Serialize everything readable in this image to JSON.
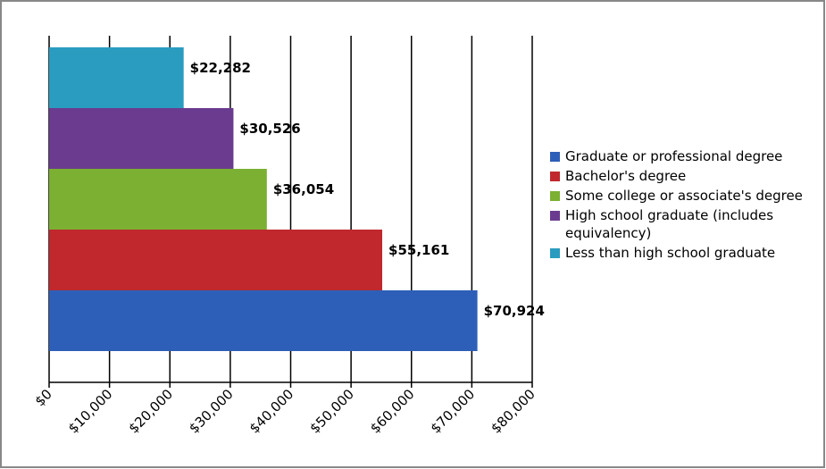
{
  "chart_data": {
    "type": "bar",
    "orientation": "horizontal",
    "series": [
      {
        "name": "Graduate or professional degree",
        "color": "#2e5fb8",
        "values": [
          70924
        ],
        "value_labels": [
          "$70,924"
        ]
      },
      {
        "name": "Bachelor's degree",
        "color": "#c0282d",
        "values": [
          55161
        ],
        "value_labels": [
          "$55,161"
        ]
      },
      {
        "name": "Some college or associate's degree",
        "color": "#7bb032",
        "values": [
          36054
        ],
        "value_labels": [
          "$36,054"
        ]
      },
      {
        "name": "High school graduate (includes equivalency)",
        "color": "#6a3b8f",
        "values": [
          30526
        ],
        "value_labels": [
          "$30,526"
        ]
      },
      {
        "name": "Less than high school graduate",
        "color": "#2a9cc0",
        "values": [
          22282
        ],
        "value_labels": [
          "$22,282"
        ]
      }
    ],
    "xlim": [
      0,
      80000
    ],
    "xticks": [
      {
        "value": 0,
        "label": "$0"
      },
      {
        "value": 10000,
        "label": "$10,000"
      },
      {
        "value": 20000,
        "label": "$20,000"
      },
      {
        "value": 30000,
        "label": "$30,000"
      },
      {
        "value": 40000,
        "label": "$40,000"
      },
      {
        "value": 50000,
        "label": "$50,000"
      },
      {
        "value": 60000,
        "label": "$60,000"
      },
      {
        "value": 70000,
        "label": "$70,000"
      },
      {
        "value": 80000,
        "label": "$80,000"
      }
    ],
    "grid": true
  }
}
